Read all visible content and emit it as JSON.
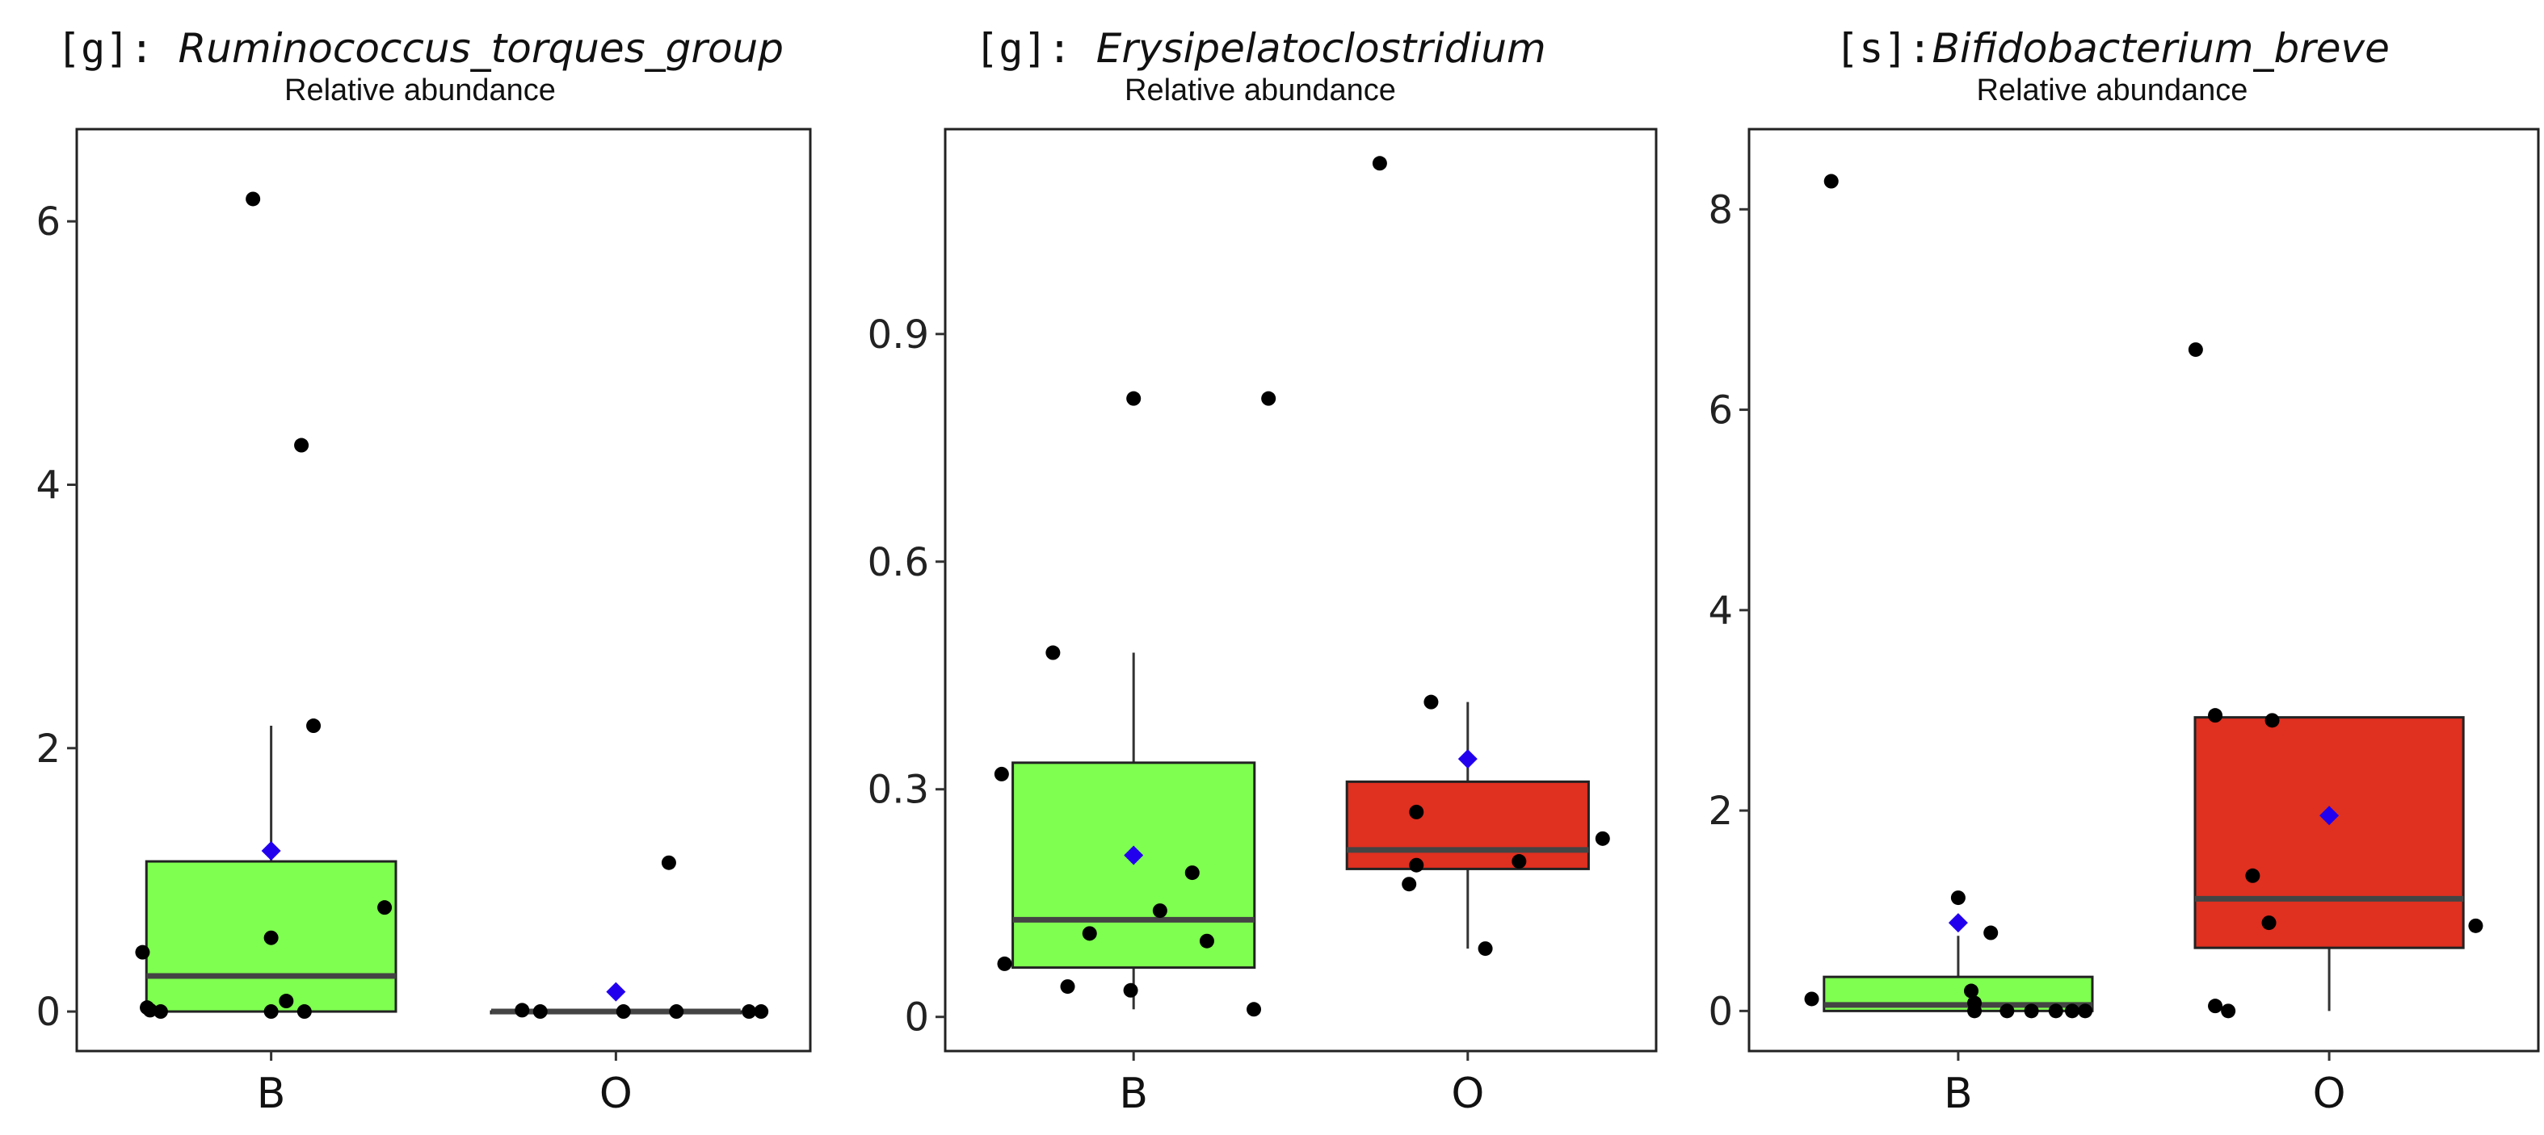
{
  "figure": {
    "background": "#ffffff"
  },
  "colors": {
    "B": "#7fff50",
    "O": "#e03020",
    "box_stroke": "#222222",
    "median": "#444444",
    "point": "#000000",
    "mean": "#2200ee"
  },
  "chart_data": [
    {
      "type": "box",
      "title_prefix": "[g]: ",
      "title_taxon": "Ruminococcus_torques_group",
      "subtitle": "Relative abundance",
      "ylim": [
        -0.3,
        6.7
      ],
      "yticks": [
        0,
        2,
        4,
        6
      ],
      "ytick_labels": [
        "0",
        "2",
        "4",
        "6"
      ],
      "categories": [
        "B",
        "O"
      ],
      "boxes": [
        {
          "group": "B",
          "q1": 0.0,
          "median": 0.27,
          "q3": 1.14,
          "whisker_low": 0.0,
          "whisker_high": 2.17,
          "mean": 1.22,
          "points": [
            [
              -0.85,
              0.45
            ],
            [
              -0.82,
              0.03
            ],
            [
              -0.8,
              0.01
            ],
            [
              -0.73,
              0.0
            ],
            [
              -0.12,
              6.17
            ],
            [
              0.0,
              0.56
            ],
            [
              0.0,
              0.0
            ],
            [
              0.1,
              0.08
            ],
            [
              0.22,
              0.0
            ],
            [
              0.2,
              4.3
            ],
            [
              0.28,
              2.17
            ],
            [
              0.75,
              0.79
            ]
          ]
        },
        {
          "group": "O",
          "q1": 0.0,
          "median": 0.0,
          "q3": 0.0,
          "whisker_low": 0.0,
          "whisker_high": 0.0,
          "mean": 0.15,
          "points": [
            [
              -0.62,
              0.01
            ],
            [
              -0.5,
              0.0
            ],
            [
              0.05,
              0.0
            ],
            [
              0.35,
              1.13
            ],
            [
              0.4,
              0.0
            ],
            [
              0.88,
              0.0
            ],
            [
              0.96,
              0.0
            ]
          ]
        }
      ]
    },
    {
      "type": "box",
      "title_prefix": "[g]: ",
      "title_taxon": "Erysipelatoclostridium",
      "subtitle": "Relative abundance",
      "ylim": [
        -0.045,
        1.17
      ],
      "yticks": [
        0,
        0.3,
        0.6,
        0.9
      ],
      "ytick_labels": [
        "0",
        "0.3",
        "0.6",
        "0.9"
      ],
      "categories": [
        "B",
        "O"
      ],
      "boxes": [
        {
          "group": "B",
          "q1": 0.065,
          "median": 0.128,
          "q3": 0.335,
          "whisker_low": 0.01,
          "whisker_high": 0.48,
          "mean": 0.213,
          "points": [
            [
              -0.9,
              0.32
            ],
            [
              -0.88,
              0.07
            ],
            [
              -0.55,
              0.48
            ],
            [
              -0.45,
              0.04
            ],
            [
              -0.3,
              0.11
            ],
            [
              -0.02,
              0.035
            ],
            [
              0.0,
              0.815
            ],
            [
              0.18,
              0.14
            ],
            [
              0.4,
              0.19
            ],
            [
              0.5,
              0.1
            ],
            [
              0.82,
              0.01
            ],
            [
              0.92,
              0.815
            ]
          ]
        },
        {
          "group": "O",
          "q1": 0.195,
          "median": 0.22,
          "q3": 0.31,
          "whisker_low": 0.09,
          "whisker_high": 0.415,
          "mean": 0.34,
          "points": [
            [
              -0.4,
              0.175
            ],
            [
              -0.35,
              0.2
            ],
            [
              -0.35,
              0.27
            ],
            [
              -0.25,
              0.415
            ],
            [
              0.12,
              0.09
            ],
            [
              0.35,
              0.205
            ],
            [
              0.92,
              0.235
            ],
            [
              -0.6,
              1.125
            ]
          ]
        }
      ]
    },
    {
      "type": "box",
      "title_prefix": "[s]:",
      "title_taxon": "Bifidobacterium_breve",
      "subtitle": "Relative abundance",
      "ylim": [
        -0.4,
        8.8
      ],
      "yticks": [
        0,
        2,
        4,
        6,
        8
      ],
      "ytick_labels": [
        "0",
        "2",
        "4",
        "6",
        "8"
      ],
      "categories": [
        "B",
        "O"
      ],
      "boxes": [
        {
          "group": "B",
          "q1": 0.0,
          "median": 0.06,
          "q3": 0.34,
          "whisker_low": 0.0,
          "whisker_high": 0.75,
          "mean": 0.88,
          "points": [
            [
              -0.9,
              0.12
            ],
            [
              -0.78,
              8.28
            ],
            [
              0.0,
              1.13
            ],
            [
              0.08,
              0.2
            ],
            [
              0.1,
              0.08
            ],
            [
              0.1,
              0.0
            ],
            [
              0.2,
              0.78
            ],
            [
              0.3,
              0.0
            ],
            [
              0.45,
              0.0
            ],
            [
              0.6,
              0.0
            ],
            [
              0.7,
              0.0
            ],
            [
              0.78,
              0.0
            ]
          ]
        },
        {
          "group": "O",
          "q1": 0.63,
          "median": 1.12,
          "q3": 2.93,
          "whisker_low": 0.0,
          "whisker_high": 2.93,
          "mean": 1.95,
          "points": [
            [
              -0.82,
              6.6
            ],
            [
              -0.7,
              2.95
            ],
            [
              -0.7,
              0.05
            ],
            [
              -0.62,
              0.0
            ],
            [
              -0.47,
              1.35
            ],
            [
              -0.37,
              0.88
            ],
            [
              -0.35,
              2.9
            ],
            [
              0.9,
              0.85
            ]
          ]
        }
      ]
    }
  ]
}
